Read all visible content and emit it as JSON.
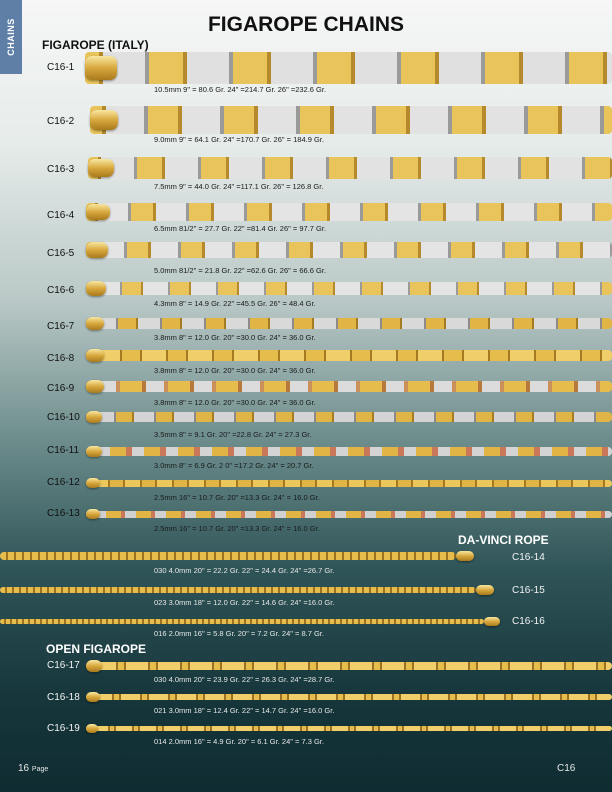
{
  "side_tab": "CHAINS",
  "title": "FIGAROPE CHAINS",
  "sections": {
    "italy": "FIGAROPE (ITALY)",
    "davinci": "DA-VINCI ROPE",
    "open": "OPEN FIGAROPE"
  },
  "items": [
    {
      "code": "C16-1",
      "specs": "10.5mm    9\" = 80.6 Gr.    24\" =214.7 Gr.    26\" =232.6 Gr."
    },
    {
      "code": "C16-2",
      "specs": "9.0mm    9\" = 64.1 Gr.    24\" =170.7 Gr.    26\" = 184.9 Gr."
    },
    {
      "code": "C16-3",
      "specs": "7.5mm    9\" = 44.0 Gr.    24\" =117.1 Gr.    26\" = 126.8 Gr."
    },
    {
      "code": "C16-4",
      "specs": "6.5mm    81/2\" = 27.7 Gr.    22\" =81.4 Gr.    26\" = 97.7 Gr."
    },
    {
      "code": "C16-5",
      "specs": "5.0mm    81/2\" = 21.8 Gr.    22\" =62.6 Gr.    26\" = 66.6 Gr."
    },
    {
      "code": "C16-6",
      "specs": "4.3mm    8\" = 14.9 Gr.    22\" =45.5 Gr.    26\" = 48.4 Gr."
    },
    {
      "code": "C16-7",
      "specs": "3.8mm    8\" = 12.0 Gr.    20\" =30.0 Gr.    24\" = 36.0 Gr."
    },
    {
      "code": "C16-8",
      "specs": "3.8mm    8\" = 12.0 Gr.    20\" =30.0 Gr.    24\" = 36.0 Gr."
    },
    {
      "code": "C16-9",
      "specs": "3.8mm    8\" = 12.0 Gr.    20\" =30.0 Gr.    24\" = 36.0 Gr."
    },
    {
      "code": "C16-10",
      "specs": "3.5mm    8\" = 9.1 Gr.    20\" =22.8 Gr.    24\" = 27.3 Gr."
    },
    {
      "code": "C16-11",
      "specs": "3.0mm    8\" = 6.9 Gr.    2 0\" =17.2 Gr.    24\" = 20.7 Gr."
    },
    {
      "code": "C16-12",
      "specs": "2.5mm    16\" = 10.7 Gr.    20\" =13.3 Gr.    24\" = 16.0 Gr."
    },
    {
      "code": "C16-13",
      "specs": "2.5mm    16\" = 10.7 Gr.    20\" =13.3 Gr.    24\" = 16.0 Gr."
    },
    {
      "code": "C16-14",
      "specs": "030   4.0mm    20\" = 22.2 Gr.    22\" = 24.4 Gr.    24\" =26.7 Gr."
    },
    {
      "code": "C16-15",
      "specs": "023   3.0mm    18\" = 12.0 Gr.    22\" = 14.6 Gr.    24\" =16.0 Gr."
    },
    {
      "code": "C16-16",
      "specs": "016   2.0mm    16\" = 5.8 Gr.    20\" = 7.2 Gr.    24\" = 8.7 Gr."
    },
    {
      "code": "C16-17",
      "specs": "030   4.0mm    20\" = 23.9 Gr.    22\" = 26.3 Gr.    24\" =28.7 Gr."
    },
    {
      "code": "C16-18",
      "specs": "021   3.0mm    18\" = 12.4 Gr.    22\" = 14.7 Gr.    24\" =16.0 Gr."
    },
    {
      "code": "C16-19",
      "specs": "014   2.0mm    16\" = 4.9 Gr.    20\" = 6.1 Gr.    24\" = 7.3 Gr."
    }
  ],
  "footer": {
    "page_num": "16",
    "page_word": "Page",
    "catalog_code": "C16"
  },
  "colors": {
    "gold": "#d4a437",
    "white_gold": "#dcdcdc",
    "tab": "#5f7fa7"
  }
}
